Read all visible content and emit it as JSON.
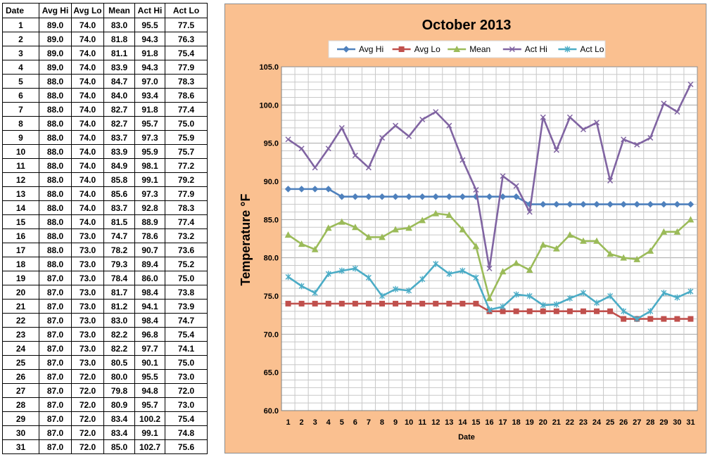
{
  "table": {
    "headers": [
      "Date",
      "Avg Hi",
      "Avg Lo",
      "Mean",
      "Act Hi",
      "Act Lo"
    ],
    "rows": [
      [
        "1",
        "89.0",
        "74.0",
        "83.0",
        "95.5",
        "77.5"
      ],
      [
        "2",
        "89.0",
        "74.0",
        "81.8",
        "94.3",
        "76.3"
      ],
      [
        "3",
        "89.0",
        "74.0",
        "81.1",
        "91.8",
        "75.4"
      ],
      [
        "4",
        "89.0",
        "74.0",
        "83.9",
        "94.3",
        "77.9"
      ],
      [
        "5",
        "88.0",
        "74.0",
        "84.7",
        "97.0",
        "78.3"
      ],
      [
        "6",
        "88.0",
        "74.0",
        "84.0",
        "93.4",
        "78.6"
      ],
      [
        "7",
        "88.0",
        "74.0",
        "82.7",
        "91.8",
        "77.4"
      ],
      [
        "8",
        "88.0",
        "74.0",
        "82.7",
        "95.7",
        "75.0"
      ],
      [
        "9",
        "88.0",
        "74.0",
        "83.7",
        "97.3",
        "75.9"
      ],
      [
        "10",
        "88.0",
        "74.0",
        "83.9",
        "95.9",
        "75.7"
      ],
      [
        "11",
        "88.0",
        "74.0",
        "84.9",
        "98.1",
        "77.2"
      ],
      [
        "12",
        "88.0",
        "74.0",
        "85.8",
        "99.1",
        "79.2"
      ],
      [
        "13",
        "88.0",
        "74.0",
        "85.6",
        "97.3",
        "77.9"
      ],
      [
        "14",
        "88.0",
        "74.0",
        "83.7",
        "92.8",
        "78.3"
      ],
      [
        "15",
        "88.0",
        "74.0",
        "81.5",
        "88.9",
        "77.4"
      ],
      [
        "16",
        "88.0",
        "73.0",
        "74.7",
        "78.6",
        "73.2"
      ],
      [
        "17",
        "88.0",
        "73.0",
        "78.2",
        "90.7",
        "73.6"
      ],
      [
        "18",
        "88.0",
        "73.0",
        "79.3",
        "89.4",
        "75.2"
      ],
      [
        "19",
        "87.0",
        "73.0",
        "78.4",
        "86.0",
        "75.0"
      ],
      [
        "20",
        "87.0",
        "73.0",
        "81.7",
        "98.4",
        "73.8"
      ],
      [
        "21",
        "87.0",
        "73.0",
        "81.2",
        "94.1",
        "73.9"
      ],
      [
        "22",
        "87.0",
        "73.0",
        "83.0",
        "98.4",
        "74.7"
      ],
      [
        "23",
        "87.0",
        "73.0",
        "82.2",
        "96.8",
        "75.4"
      ],
      [
        "24",
        "87.0",
        "73.0",
        "82.2",
        "97.7",
        "74.1"
      ],
      [
        "25",
        "87.0",
        "73.0",
        "80.5",
        "90.1",
        "75.0"
      ],
      [
        "26",
        "87.0",
        "72.0",
        "80.0",
        "95.5",
        "73.0"
      ],
      [
        "27",
        "87.0",
        "72.0",
        "79.8",
        "94.8",
        "72.0"
      ],
      [
        "28",
        "87.0",
        "72.0",
        "80.9",
        "95.7",
        "73.0"
      ],
      [
        "29",
        "87.0",
        "72.0",
        "83.4",
        "100.2",
        "75.4"
      ],
      [
        "30",
        "87.0",
        "72.0",
        "83.4",
        "99.1",
        "74.8"
      ],
      [
        "31",
        "87.0",
        "72.0",
        "85.0",
        "102.7",
        "75.6"
      ]
    ]
  },
  "chart_data": {
    "type": "line",
    "title": "October 2013",
    "xlabel": "Date",
    "ylabel": "Temperature °F",
    "ylim": [
      60,
      105
    ],
    "ytick_step": 5,
    "ytick_labels": [
      "60.0",
      "65.0",
      "70.0",
      "75.0",
      "80.0",
      "85.0",
      "90.0",
      "95.0",
      "100.0",
      "105.0"
    ],
    "grid": true,
    "legend_position": "top",
    "background_color": "#fac090",
    "categories": [
      1,
      2,
      3,
      4,
      5,
      6,
      7,
      8,
      9,
      10,
      11,
      12,
      13,
      14,
      15,
      16,
      17,
      18,
      19,
      20,
      21,
      22,
      23,
      24,
      25,
      26,
      27,
      28,
      29,
      30,
      31
    ],
    "series": [
      {
        "name": "Avg Hi",
        "color": "#4f81bd",
        "marker": "diamond",
        "values": [
          89,
          89,
          89,
          89,
          88,
          88,
          88,
          88,
          88,
          88,
          88,
          88,
          88,
          88,
          88,
          88,
          88,
          88,
          87,
          87,
          87,
          87,
          87,
          87,
          87,
          87,
          87,
          87,
          87,
          87,
          87
        ]
      },
      {
        "name": "Avg Lo",
        "color": "#c0504d",
        "marker": "square",
        "values": [
          74,
          74,
          74,
          74,
          74,
          74,
          74,
          74,
          74,
          74,
          74,
          74,
          74,
          74,
          74,
          73,
          73,
          73,
          73,
          73,
          73,
          73,
          73,
          73,
          73,
          72,
          72,
          72,
          72,
          72,
          72
        ]
      },
      {
        "name": "Mean",
        "color": "#9bbb59",
        "marker": "triangle",
        "values": [
          83.0,
          81.8,
          81.1,
          83.9,
          84.7,
          84.0,
          82.7,
          82.7,
          83.7,
          83.9,
          84.9,
          85.8,
          85.6,
          83.7,
          81.5,
          74.7,
          78.2,
          79.3,
          78.4,
          81.7,
          81.2,
          83.0,
          82.2,
          82.2,
          80.5,
          80.0,
          79.8,
          80.9,
          83.4,
          83.4,
          85.0
        ]
      },
      {
        "name": "Act Hi",
        "color": "#8064a2",
        "marker": "x",
        "values": [
          95.5,
          94.3,
          91.8,
          94.3,
          97.0,
          93.4,
          91.8,
          95.7,
          97.3,
          95.9,
          98.1,
          99.1,
          97.3,
          92.8,
          88.9,
          78.6,
          90.7,
          89.4,
          86.0,
          98.4,
          94.1,
          98.4,
          96.8,
          97.7,
          90.1,
          95.5,
          94.8,
          95.7,
          100.2,
          99.1,
          102.7
        ]
      },
      {
        "name": "Act Lo",
        "color": "#4bacc6",
        "marker": "star",
        "values": [
          77.5,
          76.3,
          75.4,
          77.9,
          78.3,
          78.6,
          77.4,
          75.0,
          75.9,
          75.7,
          77.2,
          79.2,
          77.9,
          78.3,
          77.4,
          73.2,
          73.6,
          75.2,
          75.0,
          73.8,
          73.9,
          74.7,
          75.4,
          74.1,
          75.0,
          73.0,
          72.0,
          73.0,
          75.4,
          74.8,
          75.6
        ]
      }
    ]
  }
}
